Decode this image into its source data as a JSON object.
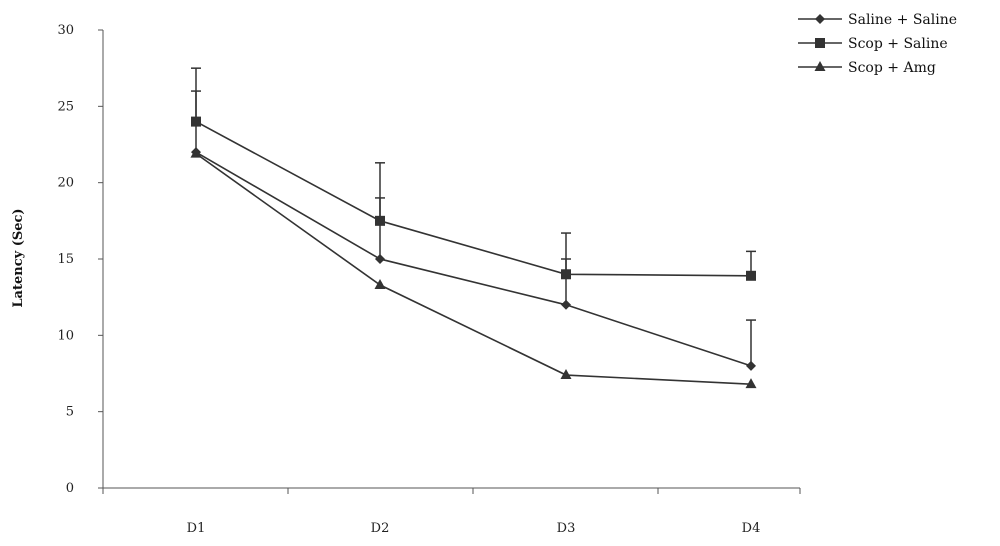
{
  "chart_data": {
    "type": "line",
    "title": "",
    "xlabel": "",
    "ylabel": "Latency (Sec)",
    "categories": [
      "D1",
      "D2",
      "D3",
      "D4"
    ],
    "ylim": [
      0,
      30
    ],
    "yticks": [
      0,
      5,
      10,
      15,
      20,
      25,
      30
    ],
    "grid": false,
    "legend_position": "top-right",
    "series": [
      {
        "name": "Saline + Saline",
        "marker": "diamond",
        "values": [
          22.0,
          15.0,
          12.0,
          8.0
        ],
        "error": [
          4.0,
          4.0,
          3.0,
          3.0
        ]
      },
      {
        "name": "Scop + Saline",
        "marker": "square",
        "values": [
          24.0,
          17.5,
          14.0,
          13.9
        ],
        "error": [
          3.5,
          3.8,
          2.7,
          1.6
        ]
      },
      {
        "name": "Scop + Amg",
        "marker": "triangle",
        "values": [
          21.9,
          13.3,
          7.4,
          6.8
        ],
        "error": [
          0,
          0,
          0,
          0
        ]
      }
    ],
    "colors": {
      "line": "#333333",
      "axis": "#555555"
    }
  }
}
